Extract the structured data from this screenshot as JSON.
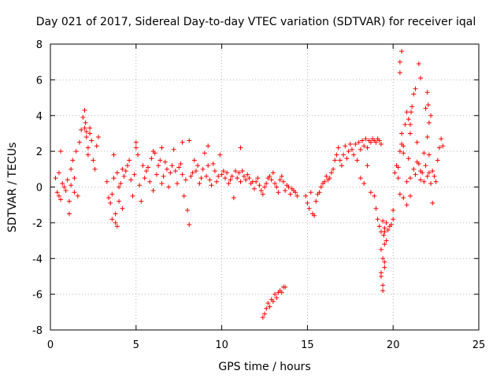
{
  "chart_data": {
    "type": "scatter",
    "title": "Day 021 of 2017, Sidereal Day-to-day VTEC variation (SDTVAR) for receiver iqal",
    "xlabel": "GPS time / hours",
    "ylabel": "SDTVAR / TECUs",
    "xlim": [
      0,
      25
    ],
    "ylim": [
      -8,
      8
    ],
    "xticks": [
      "0",
      "5",
      "10",
      "15",
      "20",
      "25"
    ],
    "yticks": [
      "-8",
      "-6",
      "-4",
      "-2",
      "0",
      "2",
      "4",
      "6",
      "8"
    ],
    "grid": true,
    "marker": "+",
    "color": "#ff0000",
    "series": [
      {
        "name": "SDTVAR",
        "x": [
          0.3,
          0.4,
          0.5,
          0.6,
          0.7,
          0.8,
          0.5,
          0.6,
          0.9,
          1.0,
          1.1,
          1.2,
          1.3,
          1.4,
          1.5,
          1.6,
          1.7,
          1.8,
          1.9,
          2.0,
          2.1,
          2.2,
          2.3,
          2.4,
          2.0,
          2.05,
          2.1,
          2.2,
          2.3,
          2.5,
          2.6,
          2.7,
          2.8,
          1.2,
          1.4,
          1.1,
          3.3,
          3.4,
          3.5,
          3.6,
          3.7,
          3.8,
          3.9,
          4.0,
          4.1,
          4.2,
          4.3,
          3.6,
          3.8,
          3.9,
          4.0,
          4.4,
          4.5,
          4.6,
          4.7,
          4.8,
          4.9,
          5.0,
          5.1,
          5.2,
          5.3,
          5.4,
          5.5,
          5.6,
          5.7,
          5.8,
          5.9,
          6.0,
          6.1,
          6.2,
          6.3,
          6.4,
          6.5,
          6.6,
          6.7,
          6.8,
          6.9,
          7.0,
          7.1,
          7.2,
          7.3,
          7.4,
          7.5,
          7.6,
          7.7,
          7.8,
          7.9,
          8.0,
          8.1,
          8.2,
          8.3,
          8.4,
          8.5,
          8.6,
          8.7,
          8.8,
          8.9,
          9.0,
          9.1,
          9.2,
          9.3,
          9.4,
          9.5,
          9.6,
          9.7,
          9.8,
          9.9,
          10.0,
          10.1,
          10.2,
          10.3,
          10.4,
          10.5,
          10.6,
          10.7,
          10.8,
          10.9,
          11.0,
          11.1,
          11.2,
          11.3,
          11.4,
          11.5,
          11.6,
          11.7,
          11.8,
          11.9,
          12.0,
          12.1,
          12.2,
          12.3,
          12.4,
          12.5,
          12.6,
          12.7,
          12.8,
          12.9,
          13.0,
          13.1,
          13.2,
          13.3,
          13.4,
          13.5,
          13.6,
          13.7,
          13.8,
          13.9,
          14.0,
          14.1,
          14.2,
          14.3,
          14.4,
          5.0,
          6.0,
          6.5,
          7.7,
          8.1,
          9.2,
          11.1,
          4.2,
          3.7,
          12.4,
          12.5,
          12.6,
          12.7,
          12.8,
          12.9,
          13.0,
          13.1,
          13.2,
          13.3,
          13.4,
          13.5,
          13.6,
          13.7,
          14.9,
          15.0,
          15.1,
          15.2,
          15.3,
          15.4,
          15.5,
          15.6,
          15.7,
          15.8,
          15.9,
          16.0,
          16.1,
          16.2,
          16.3,
          16.4,
          16.5,
          16.6,
          16.7,
          16.8,
          16.9,
          17.0,
          17.1,
          17.2,
          17.3,
          17.4,
          17.5,
          17.6,
          17.7,
          17.8,
          17.9,
          18.0,
          18.1,
          18.2,
          18.3,
          18.4,
          18.5,
          18.6,
          18.7,
          18.8,
          18.9,
          19.0,
          19.1,
          19.2,
          19.3,
          18.1,
          18.3,
          18.5,
          18.7,
          18.9,
          19.0,
          19.1,
          19.2,
          19.3,
          19.4,
          19.5,
          19.6,
          19.7,
          19.8,
          19.9,
          20.0,
          19.3,
          19.4,
          19.5,
          19.6,
          19.3,
          19.4,
          19.5,
          19.4,
          19.5,
          19.3,
          19.45,
          19.5,
          20.0,
          20.1,
          20.2,
          20.3,
          20.4,
          20.5,
          20.6,
          20.7,
          20.8,
          20.9,
          21.0,
          21.1,
          21.2,
          21.3,
          21.4,
          21.5,
          21.6,
          21.7,
          21.8,
          21.9,
          22.0,
          22.1,
          22.2,
          22.3,
          22.4,
          22.5,
          22.6,
          22.7,
          22.8,
          22.9,
          20.3,
          20.4,
          20.6,
          20.8,
          21.0,
          21.2,
          21.4,
          21.6,
          21.8,
          22.0,
          22.1,
          22.2,
          20.5,
          20.9,
          21.3,
          21.0,
          20.8,
          20.4,
          20.4,
          20.5,
          20.6,
          21.0,
          21.05,
          21.5,
          21.6,
          21.9,
          22.0,
          22.1,
          22.3,
          22.05
        ],
        "y": [
          0.5,
          -0.3,
          0.8,
          -0.7,
          0.2,
          0.0,
          -0.5,
          2.0,
          -0.2,
          0.4,
          -1.5,
          1.0,
          1.5,
          0.5,
          2.0,
          -0.5,
          2.5,
          3.2,
          3.9,
          4.3,
          2.8,
          2.2,
          3.0,
          2.6,
          3.3,
          3.6,
          3.1,
          1.8,
          3.3,
          1.5,
          1.0,
          2.3,
          2.8,
          0.1,
          -0.3,
          -0.8,
          0.3,
          -0.6,
          -0.9,
          -0.4,
          0.5,
          -1.5,
          -2.2,
          -0.8,
          0.2,
          -1.2,
          0.6,
          -1.8,
          -2.0,
          0.8,
          0.0,
          0.9,
          1.2,
          1.5,
          0.4,
          -0.5,
          0.7,
          2.2,
          1.8,
          0.1,
          -0.8,
          1.2,
          0.5,
          0.9,
          1.1,
          0.3,
          1.6,
          -0.2,
          1.9,
          0.7,
          1.2,
          1.5,
          0.2,
          0.6,
          1.4,
          1.0,
          0.0,
          0.8,
          1.2,
          2.1,
          0.9,
          0.2,
          1.1,
          1.3,
          0.7,
          -0.5,
          0.4,
          -1.3,
          -2.1,
          0.6,
          0.8,
          1.5,
          0.9,
          1.2,
          0.2,
          0.5,
          1.0,
          1.9,
          0.6,
          1.2,
          0.4,
          0.1,
          1.3,
          0.9,
          0.3,
          0.6,
          1.8,
          0.7,
          0.9,
          0.5,
          0.8,
          0.2,
          0.4,
          0.6,
          -0.6,
          0.9,
          0.5,
          0.8,
          0.3,
          0.9,
          0.6,
          0.4,
          0.7,
          0.5,
          0.2,
          0.3,
          -0.1,
          0.3,
          0.5,
          0.1,
          -0.2,
          -0.4,
          0.0,
          0.2,
          0.5,
          0.6,
          0.4,
          0.8,
          0.2,
          0.0,
          -0.3,
          0.4,
          0.6,
          0.3,
          -0.2,
          0.1,
          0.0,
          -0.4,
          -0.1,
          -0.2,
          -0.3,
          -0.5,
          2.5,
          2.0,
          2.2,
          2.5,
          2.6,
          2.3,
          2.2,
          1.0,
          1.8,
          -7.3,
          -7.1,
          -6.8,
          -6.5,
          -6.7,
          -6.3,
          -6.4,
          -6.0,
          -6.2,
          -5.9,
          -5.8,
          -5.9,
          -5.6,
          -5.6,
          -0.5,
          -0.9,
          -1.2,
          -0.3,
          -1.5,
          -1.6,
          -0.8,
          -0.4,
          -0.3,
          0.0,
          0.2,
          0.3,
          0.6,
          0.4,
          0.5,
          0.8,
          1.0,
          1.5,
          1.8,
          2.2,
          1.5,
          1.2,
          1.8,
          2.3,
          1.6,
          2.0,
          2.4,
          2.1,
          1.8,
          2.4,
          1.5,
          2.5,
          2.1,
          2.6,
          2.3,
          2.7,
          2.2,
          2.6,
          2.5,
          2.7,
          2.6,
          2.5,
          2.7,
          2.6,
          2.4,
          0.5,
          0.2,
          1.2,
          -0.3,
          -0.5,
          -1.2,
          -1.8,
          -2.2,
          -2.5,
          -1.9,
          -2.3,
          -2.0,
          -2.4,
          -2.2,
          -2.1,
          -1.8,
          -3.5,
          -4.0,
          -3.2,
          -3.0,
          -5.0,
          -5.5,
          -4.5,
          -5.8,
          -4.2,
          -4.8,
          -2.7,
          -2.5,
          -1.3,
          0.8,
          1.2,
          0.5,
          2.0,
          3.0,
          2.3,
          3.5,
          4.2,
          3.8,
          3.0,
          4.5,
          5.2,
          5.5,
          2.5,
          1.3,
          0.4,
          0.8,
          0.3,
          1.2,
          0.6,
          1.8,
          0.2,
          0.9,
          0.6,
          0.3,
          1.5,
          2.2,
          2.7,
          2.3,
          1.1,
          -0.4,
          -0.6,
          0.3,
          0.5,
          1.0,
          1.4,
          0.9,
          1.9,
          2.8,
          3.6,
          4.0,
          2.4,
          1.6,
          0.7,
          -0.5,
          -1.0,
          6.4,
          7.0,
          7.6,
          1.9,
          3.5,
          4.2,
          6.9,
          6.1,
          4.4,
          5.3,
          0.8,
          -0.9,
          4.6
        ]
      }
    ]
  }
}
